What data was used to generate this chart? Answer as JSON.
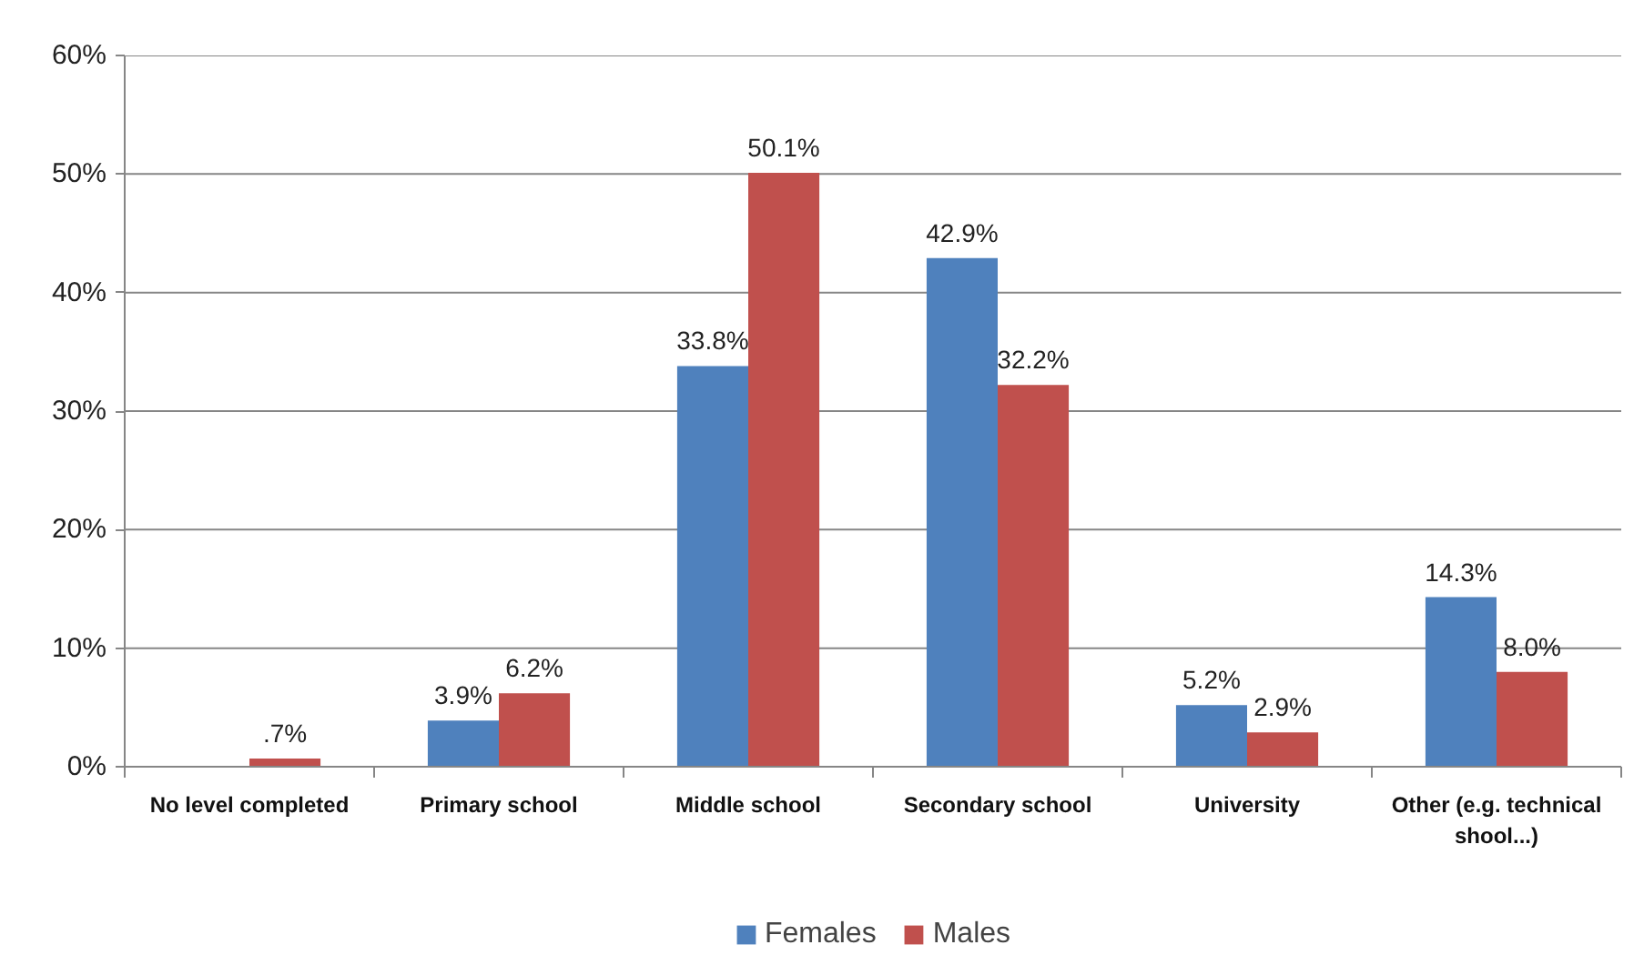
{
  "chart_data": {
    "type": "bar",
    "categories": [
      "No level completed",
      "Primary school",
      "Middle school",
      "Secondary school",
      "University",
      "Other (e.g. technical shool...)"
    ],
    "series": [
      {
        "name": "Females",
        "color": "#4f81bd",
        "values": [
          null,
          3.9,
          33.8,
          42.9,
          5.2,
          14.3
        ],
        "value_labels": [
          null,
          "3.9%",
          "33.8%",
          "42.9%",
          "5.2%",
          "14.3%"
        ]
      },
      {
        "name": "Males",
        "color": "#c0504d",
        "values": [
          0.7,
          6.2,
          50.1,
          32.2,
          2.9,
          8.0
        ],
        "value_labels": [
          ".7%",
          "6.2%",
          "50.1%",
          "32.2%",
          "2.9%",
          "8.0%"
        ]
      }
    ],
    "ylim": [
      0,
      60
    ],
    "yticks": [
      {
        "value": 0,
        "label": "0%"
      },
      {
        "value": 10,
        "label": "10%"
      },
      {
        "value": 20,
        "label": "20%"
      },
      {
        "value": 30,
        "label": "30%"
      },
      {
        "value": 40,
        "label": "40%"
      },
      {
        "value": 50,
        "label": "50%"
      },
      {
        "value": 60,
        "label": "60%"
      }
    ],
    "grid": "y",
    "legend": "bottom"
  }
}
